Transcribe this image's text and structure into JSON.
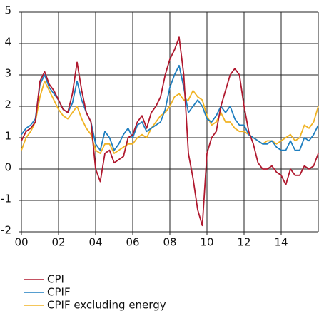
{
  "chart_data": {
    "type": "line",
    "x": [
      2000,
      2000.25,
      2000.5,
      2000.75,
      2001,
      2001.25,
      2001.5,
      2001.75,
      2002,
      2002.25,
      2002.5,
      2002.75,
      2003,
      2003.25,
      2003.5,
      2003.75,
      2004,
      2004.25,
      2004.5,
      2004.75,
      2005,
      2005.25,
      2005.5,
      2005.75,
      2006,
      2006.25,
      2006.5,
      2006.75,
      2007,
      2007.25,
      2007.5,
      2007.75,
      2008,
      2008.25,
      2008.5,
      2008.75,
      2009,
      2009.25,
      2009.5,
      2009.75,
      2010,
      2010.25,
      2010.5,
      2010.75,
      2011,
      2011.25,
      2011.5,
      2011.75,
      2012,
      2012.25,
      2012.5,
      2012.75,
      2013,
      2013.25,
      2013.5,
      2013.75,
      2014,
      2014.25,
      2014.5,
      2014.75,
      2015,
      2015.25,
      2015.5,
      2015.75,
      2016
    ],
    "series": [
      {
        "name": "CPI",
        "color": "#b0182e",
        "values": [
          0.9,
          1.2,
          1.3,
          1.5,
          2.8,
          3.1,
          2.7,
          2.5,
          2.2,
          1.9,
          1.8,
          2.4,
          3.4,
          2.5,
          1.8,
          1.5,
          0.0,
          -0.4,
          0.5,
          0.6,
          0.2,
          0.3,
          0.4,
          1.0,
          1.1,
          1.5,
          1.7,
          1.3,
          1.8,
          2.0,
          2.3,
          3.0,
          3.5,
          3.8,
          4.2,
          3.0,
          0.5,
          -0.3,
          -1.3,
          -1.8,
          0.5,
          1.0,
          1.2,
          2.0,
          2.5,
          3.0,
          3.2,
          3.0,
          2.0,
          1.2,
          0.8,
          0.2,
          0.0,
          0.0,
          0.1,
          -0.1,
          -0.2,
          -0.5,
          0.0,
          -0.2,
          -0.2,
          0.1,
          0.0,
          0.1,
          0.5
        ]
      },
      {
        "name": "CPIF",
        "color": "#1f7fc0",
        "values": [
          1.1,
          1.3,
          1.4,
          1.6,
          2.7,
          3.0,
          2.6,
          2.4,
          2.2,
          1.9,
          1.8,
          2.1,
          2.8,
          2.2,
          1.8,
          1.5,
          0.8,
          0.6,
          1.2,
          1.0,
          0.6,
          0.8,
          1.1,
          1.3,
          1.0,
          1.4,
          1.5,
          1.2,
          1.3,
          1.4,
          1.5,
          1.9,
          2.6,
          3.0,
          3.3,
          2.6,
          1.8,
          2.0,
          2.2,
          2.0,
          1.6,
          1.5,
          1.7,
          2.0,
          1.8,
          2.0,
          1.6,
          1.4,
          1.4,
          1.1,
          1.0,
          0.9,
          0.8,
          0.8,
          0.9,
          0.7,
          0.6,
          0.6,
          0.9,
          0.6,
          0.6,
          1.0,
          0.9,
          1.1,
          1.4
        ]
      },
      {
        "name": "CPIF excluding energy",
        "color": "#f0b323",
        "values": [
          0.6,
          1.0,
          1.2,
          1.5,
          2.3,
          2.8,
          2.5,
          2.2,
          1.9,
          1.7,
          1.6,
          1.8,
          2.0,
          1.6,
          1.3,
          1.1,
          0.6,
          0.5,
          0.8,
          0.8,
          0.5,
          0.6,
          0.7,
          0.8,
          0.8,
          1.0,
          1.1,
          1.0,
          1.3,
          1.5,
          1.7,
          1.8,
          2.0,
          2.3,
          2.4,
          2.2,
          2.2,
          2.5,
          2.3,
          2.2,
          1.7,
          1.4,
          1.5,
          1.8,
          1.5,
          1.5,
          1.3,
          1.2,
          1.2,
          1.1,
          1.0,
          0.9,
          0.8,
          0.9,
          0.9,
          0.8,
          0.9,
          1.0,
          1.1,
          0.9,
          1.0,
          1.4,
          1.3,
          1.5,
          2.0
        ]
      }
    ],
    "xlim": [
      2000,
      2016
    ],
    "xticks": [
      {
        "value": 2000,
        "label": "00"
      },
      {
        "value": 2002,
        "label": "02"
      },
      {
        "value": 2004,
        "label": "04"
      },
      {
        "value": 2006,
        "label": "06"
      },
      {
        "value": 2008,
        "label": "08"
      },
      {
        "value": 2010,
        "label": "10"
      },
      {
        "value": 2012,
        "label": "12"
      },
      {
        "value": 2014,
        "label": "14"
      }
    ],
    "ylim": [
      -2,
      5
    ],
    "yticks": [
      -2,
      -1,
      0,
      1,
      2,
      3,
      4,
      5
    ],
    "grid": true
  }
}
